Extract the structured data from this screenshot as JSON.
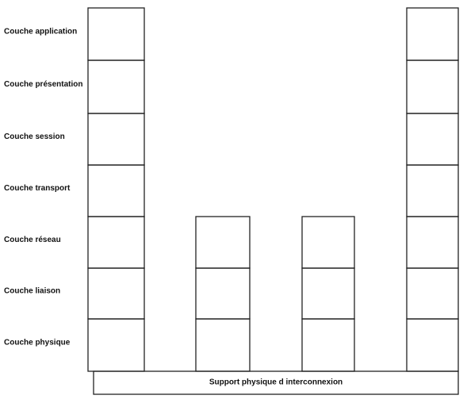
{
  "layers": [
    "Couche application",
    "Couche présentation",
    "Couche session",
    "Couche transport",
    "Couche réseau",
    "Couche liaison",
    "Couche physique"
  ],
  "support": "Support physique d interconnexion"
}
